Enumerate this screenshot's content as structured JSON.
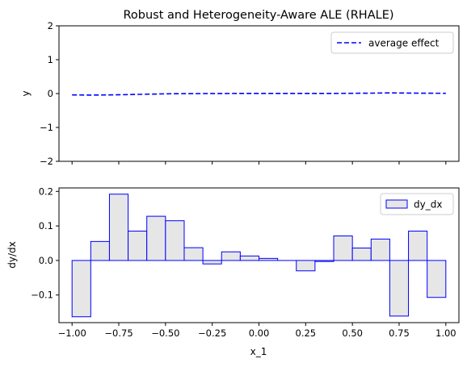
{
  "chart_data": [
    {
      "type": "line",
      "title": "Robust and Heterogeneity-Aware ALE (RHALE)",
      "ylabel": "y",
      "xlabel": "",
      "xlim": [
        -1.07,
        1.07
      ],
      "ylim": [
        -2,
        2
      ],
      "yticks": [
        2,
        1,
        0,
        -1,
        -2
      ],
      "ytick_labels": [
        "2",
        "1",
        "0",
        "−1",
        "−2"
      ],
      "grid": false,
      "legend_position": "top-right",
      "series": [
        {
          "name": "average effect",
          "color": "#0000ff",
          "style": "dashed",
          "x": [
            -1.0,
            -0.9,
            -0.8,
            -0.7,
            -0.6,
            -0.5,
            -0.4,
            -0.3,
            -0.2,
            -0.1,
            0.0,
            0.1,
            0.2,
            0.3,
            0.4,
            0.5,
            0.6,
            0.7,
            0.8,
            0.9,
            1.0
          ],
          "y": [
            -0.04,
            -0.045,
            -0.04,
            -0.03,
            -0.018,
            -0.008,
            -0.002,
            0.0,
            0.002,
            0.004,
            0.005,
            0.005,
            0.004,
            0.004,
            0.005,
            0.008,
            0.012,
            0.02,
            0.014,
            0.01,
            0.008
          ]
        }
      ]
    },
    {
      "type": "bar",
      "title": "",
      "xlabel": "x_1",
      "ylabel": "dy/dx",
      "xlim": [
        -1.07,
        1.07
      ],
      "ylim": [
        -0.18,
        0.21
      ],
      "xticks": [
        -1.0,
        -0.75,
        -0.5,
        -0.25,
        0.0,
        0.25,
        0.5,
        0.75,
        1.0
      ],
      "xtick_labels": [
        "−1.00",
        "−0.75",
        "−0.50",
        "−0.25",
        "0.00",
        "0.25",
        "0.50",
        "0.75",
        "1.00"
      ],
      "yticks": [
        0.2,
        0.1,
        0.0,
        -0.1
      ],
      "ytick_labels": [
        "0.2",
        "0.1",
        "0.0",
        "−0.1"
      ],
      "grid": false,
      "legend_position": "top-right",
      "bin_edges": [
        -1.0,
        -0.9,
        -0.8,
        -0.7,
        -0.6,
        -0.5,
        -0.4,
        -0.3,
        -0.2,
        -0.1,
        0.0,
        0.1,
        0.2,
        0.3,
        0.4,
        0.5,
        0.6,
        0.7,
        0.8,
        0.9,
        1.0
      ],
      "series": [
        {
          "name": "dy_dx",
          "face_color": "#e6e6e6",
          "edge_color": "#0000ff",
          "values": [
            -0.163,
            0.055,
            0.192,
            0.085,
            0.128,
            0.115,
            0.037,
            -0.01,
            0.025,
            0.013,
            0.006,
            0.0,
            -0.03,
            -0.003,
            0.071,
            0.036,
            0.062,
            -0.161,
            0.085,
            -0.107
          ]
        }
      ]
    }
  ]
}
